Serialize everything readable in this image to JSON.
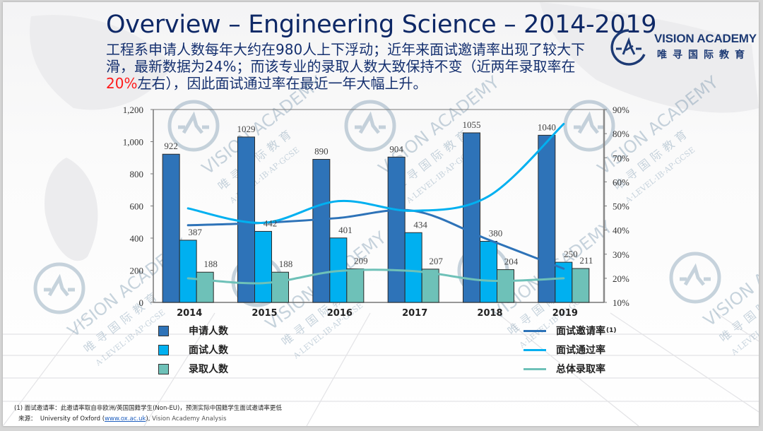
{
  "slide": {
    "title": "Overview – Engineering Science – 2014-2019",
    "subtitle_parts": {
      "part1": "工程系申请人数每年大约在980人上下浮动；近年来面试邀请率出现了较大下滑，最新数据为24%；而该专业的录取人数大致保持不变（近两年录取率在",
      "highlight": "20%",
      "part2": "左右），因此面试通过率在最近一年大幅上升。"
    },
    "colors": {
      "title": "#0e2866",
      "highlight": "#ff1a1a"
    }
  },
  "logo": {
    "name_en": "VISION ACADEMY",
    "name_cn": "唯寻国际教育",
    "icon": "vision-academy-logo-icon"
  },
  "watermark": {
    "text_en": "VISION ACADEMY",
    "text_cn": "唯寻国际教育",
    "text_sub": "A·LEVEL·IB·AP·GCSE"
  },
  "legend": {
    "bars": [
      {
        "label": "申请人数",
        "color": "#2e73b8"
      },
      {
        "label": "面试人数",
        "color": "#00b0f0"
      },
      {
        "label": "录取人数",
        "color": "#6ec1b8"
      }
    ],
    "lines": [
      {
        "label": "面试邀请率",
        "sup": "(1)",
        "color": "#2e73b8"
      },
      {
        "label": "面试通过率",
        "color": "#00b0f0"
      },
      {
        "label": "总体录取率",
        "color": "#6ec1b8"
      }
    ]
  },
  "chart_data": {
    "type": "bar",
    "title": "",
    "xlabel": "",
    "ylabel": "",
    "categories": [
      "2014",
      "2015",
      "2016",
      "2017",
      "2018",
      "2019"
    ],
    "series": [
      {
        "name": "申请人数",
        "type": "bar",
        "axis": "left",
        "color": "#2e73b8",
        "values": [
          922,
          1029,
          890,
          904,
          1055,
          1040
        ]
      },
      {
        "name": "面试人数",
        "type": "bar",
        "axis": "left",
        "color": "#00b0f0",
        "values": [
          387,
          442,
          401,
          434,
          380,
          250
        ]
      },
      {
        "name": "录取人数",
        "type": "bar",
        "axis": "left",
        "color": "#6ec1b8",
        "values": [
          188,
          188,
          209,
          207,
          204,
          211
        ]
      },
      {
        "name": "面试邀请率",
        "type": "line",
        "axis": "right",
        "color": "#2e73b8",
        "values": [
          42,
          43,
          45,
          48,
          36,
          24
        ]
      },
      {
        "name": "面试通过率",
        "type": "line",
        "axis": "right",
        "color": "#00b0f0",
        "values": [
          49,
          43,
          52,
          48,
          54,
          84
        ]
      },
      {
        "name": "总体录取率",
        "type": "line",
        "axis": "right",
        "color": "#6ec1b8",
        "values": [
          20,
          18,
          23,
          23,
          19,
          20
        ]
      }
    ],
    "y_left": {
      "min": 0,
      "max": 1200,
      "ticks": [
        0,
        200,
        400,
        600,
        800,
        1000,
        1200
      ],
      "tick_labels": [
        "0",
        "200",
        "400",
        "600",
        "800",
        "1,000",
        "1,200"
      ]
    },
    "y_right": {
      "min": 10,
      "max": 90,
      "ticks": [
        10,
        20,
        30,
        40,
        50,
        60,
        70,
        80,
        90
      ],
      "tick_labels": [
        "10%",
        "20%",
        "30%",
        "40%",
        "50%",
        "60%",
        "70%",
        "80%",
        "90%"
      ]
    },
    "grid": false,
    "legend_position": "bottom"
  },
  "footer": {
    "footnote": "(1) 面试邀请率：此邀请率取自非欧洲/英国国籍学生(Non-EU)，预测实际中国籍学生面试邀请率更低",
    "source_label": "来源：",
    "source_text": "University of Oxford (",
    "source_link": "www.ox.ac.uk",
    "source_close": "),",
    "source_analysis": " Vision Academy Analysis"
  }
}
